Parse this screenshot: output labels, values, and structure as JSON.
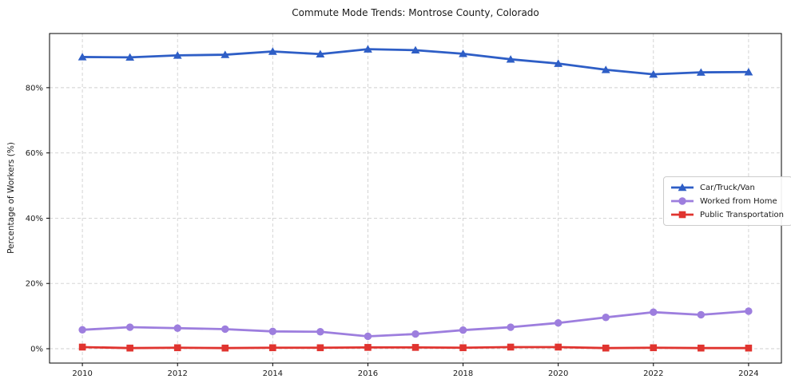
{
  "chart_data": {
    "type": "line",
    "title": "Commute Mode Trends: Montrose County, Colorado",
    "xlabel": "",
    "ylabel": "Percentage of Workers (%)",
    "x": [
      2010,
      2011,
      2012,
      2013,
      2014,
      2015,
      2016,
      2017,
      2018,
      2019,
      2020,
      2021,
      2022,
      2023,
      2024
    ],
    "series": [
      {
        "name": "Car/Truck/Van",
        "color": "#2e5ec6",
        "marker": "triangle",
        "values": [
          89.4,
          89.3,
          89.9,
          90.1,
          91.1,
          90.3,
          91.8,
          91.5,
          90.4,
          88.7,
          87.4,
          85.5,
          84.1,
          84.7,
          84.8
        ]
      },
      {
        "name": "Worked from Home",
        "color": "#9d7ede",
        "marker": "circle",
        "values": [
          5.8,
          6.6,
          6.3,
          6.0,
          5.3,
          5.2,
          3.8,
          4.5,
          5.7,
          6.6,
          7.9,
          9.6,
          11.2,
          10.4,
          11.5
        ]
      },
      {
        "name": "Public Transportation",
        "color": "#e0342f",
        "marker": "square",
        "values": [
          0.5,
          0.2,
          0.3,
          0.2,
          0.3,
          0.3,
          0.4,
          0.4,
          0.3,
          0.5,
          0.5,
          0.2,
          0.3,
          0.2,
          0.2
        ]
      }
    ],
    "x_ticks": [
      "2010",
      "2012",
      "2014",
      "2016",
      "2018",
      "2020",
      "2022",
      "2024"
    ],
    "y_ticks": [
      "0%",
      "20%",
      "40%",
      "60%",
      "80%"
    ],
    "y_tick_values": [
      0,
      20,
      40,
      60,
      80
    ],
    "x_tick_values": [
      2010,
      2012,
      2014,
      2016,
      2018,
      2020,
      2022,
      2024
    ],
    "xlim": [
      2009.31,
      2024.69
    ],
    "ylim": [
      -4.4,
      96.6
    ],
    "grid": true,
    "grid_color": "#cfcfcf",
    "spine_color": "#000000",
    "legend_position": "center right"
  }
}
